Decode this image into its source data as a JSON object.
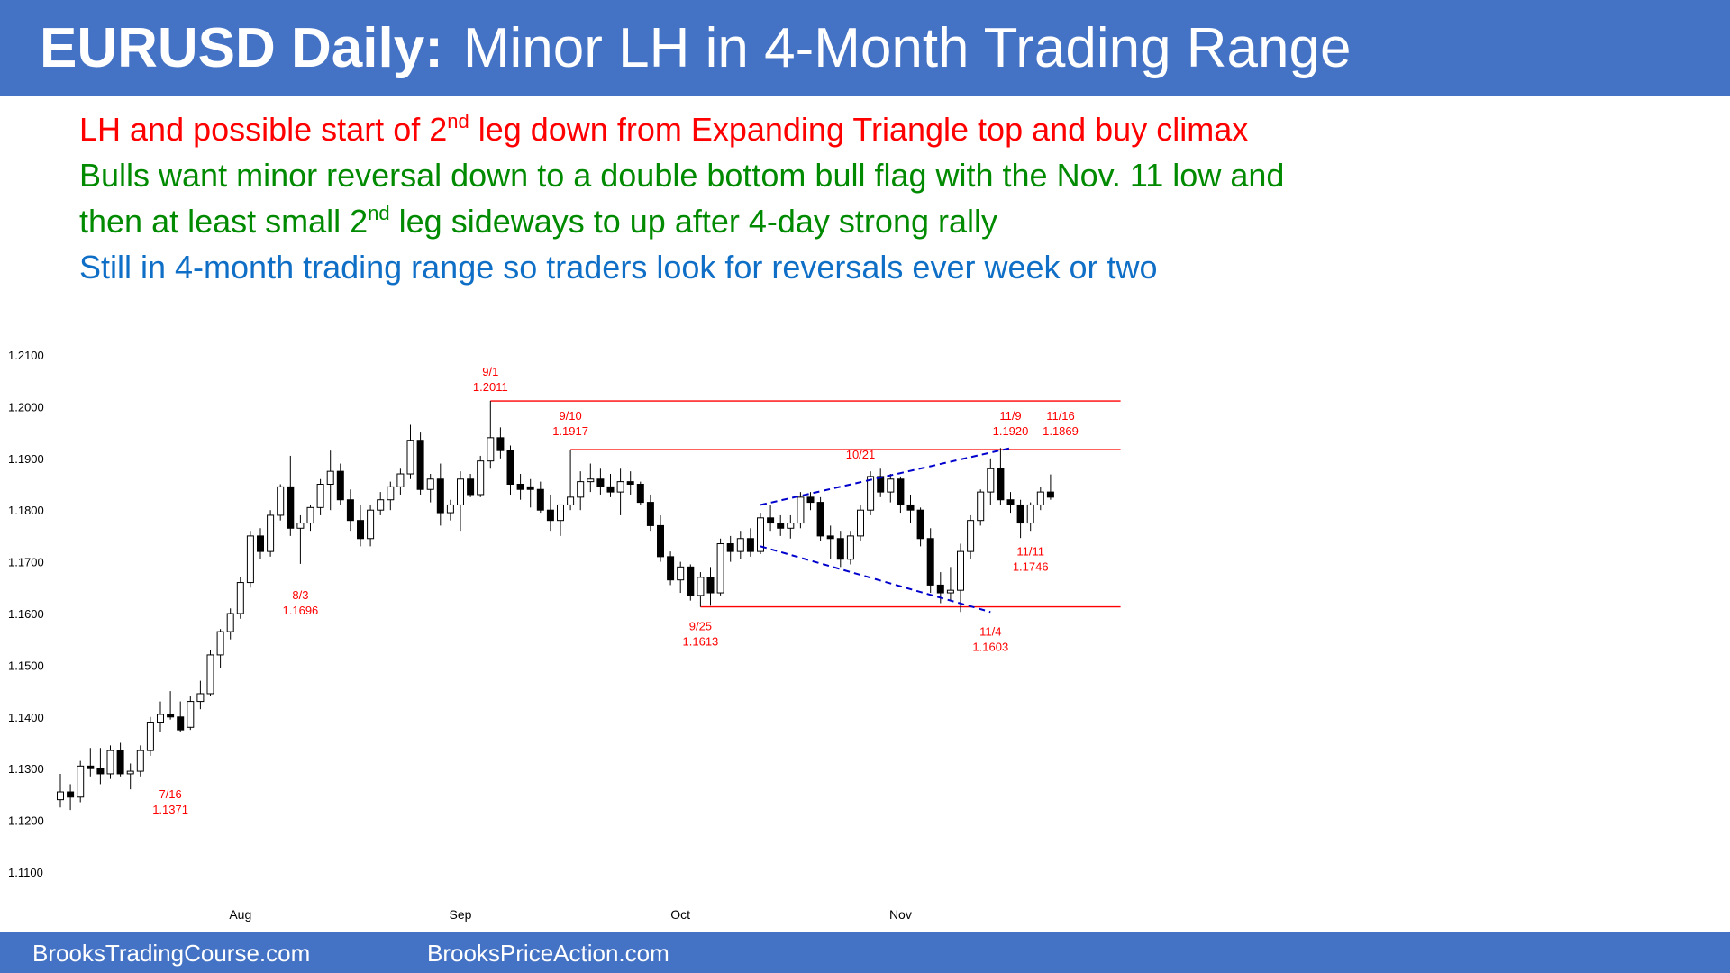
{
  "header": {
    "title_bold": "EURUSD Daily:",
    "title_rest": "Minor LH in 4-Month Trading Range"
  },
  "notes": {
    "line1": {
      "pre": "LH and possible start of 2",
      "sup": "nd",
      "post": " leg down from Expanding Triangle top and buy climax"
    },
    "line2": "Bulls want minor reversal down to a double bottom bull flag with the Nov. 11 low and",
    "line3": {
      "pre": "then at least small 2",
      "sup": "nd",
      "post": " leg sideways to up after 4-day strong rally"
    },
    "line4": "Still in 4-month trading range so traders look for reversals ever week or two"
  },
  "footer": {
    "left": "BrooksTradingCourse.com",
    "right": "BrooksPriceAction.com"
  },
  "colors": {
    "header_bg": "#4472c4",
    "red": "#ff0000",
    "green": "#008a00",
    "blue": "#0f6fc6",
    "triangle": "#0000cc"
  },
  "chart_data": {
    "type": "candlestick",
    "title": "",
    "ylim": [
      1.11,
      1.21
    ],
    "y_ticks": [
      "1.2100",
      "1.2000",
      "1.1900",
      "1.1800",
      "1.1700",
      "1.1600",
      "1.1500",
      "1.1400",
      "1.1300",
      "1.1200",
      "1.1100"
    ],
    "x_ticks": [
      {
        "label": "Aug",
        "bar": 18
      },
      {
        "label": "Sep",
        "bar": 40
      },
      {
        "label": "Oct",
        "bar": 62
      },
      {
        "label": "Nov",
        "bar": 84
      }
    ],
    "candles": [
      [
        1.124,
        1.129,
        1.1225,
        1.1255
      ],
      [
        1.1255,
        1.127,
        1.122,
        1.1245
      ],
      [
        1.1245,
        1.1315,
        1.1235,
        1.1305
      ],
      [
        1.1305,
        1.134,
        1.1285,
        1.13
      ],
      [
        1.13,
        1.134,
        1.127,
        1.129
      ],
      [
        1.129,
        1.1345,
        1.128,
        1.1335
      ],
      [
        1.1335,
        1.135,
        1.1285,
        1.129
      ],
      [
        1.129,
        1.131,
        1.126,
        1.1295
      ],
      [
        1.1295,
        1.1345,
        1.1285,
        1.1335
      ],
      [
        1.1335,
        1.14,
        1.1325,
        1.139
      ],
      [
        1.139,
        1.143,
        1.137,
        1.1405
      ],
      [
        1.1405,
        1.145,
        1.1395,
        1.14
      ],
      [
        1.14,
        1.143,
        1.137,
        1.1375
      ],
      [
        1.138,
        1.144,
        1.1375,
        1.143
      ],
      [
        1.143,
        1.147,
        1.1415,
        1.1445
      ],
      [
        1.1445,
        1.153,
        1.144,
        1.152
      ],
      [
        1.152,
        1.157,
        1.1495,
        1.1565
      ],
      [
        1.1565,
        1.161,
        1.155,
        1.16
      ],
      [
        1.16,
        1.167,
        1.159,
        1.166
      ],
      [
        1.166,
        1.176,
        1.165,
        1.175
      ],
      [
        1.175,
        1.1765,
        1.1705,
        1.172
      ],
      [
        1.172,
        1.18,
        1.171,
        1.179
      ],
      [
        1.179,
        1.185,
        1.178,
        1.1845
      ],
      [
        1.1845,
        1.1905,
        1.175,
        1.1765
      ],
      [
        1.1765,
        1.179,
        1.1696,
        1.1775
      ],
      [
        1.1775,
        1.181,
        1.176,
        1.1805
      ],
      [
        1.1805,
        1.186,
        1.179,
        1.185
      ],
      [
        1.185,
        1.1915,
        1.18,
        1.1875
      ],
      [
        1.1875,
        1.189,
        1.181,
        1.182
      ],
      [
        1.182,
        1.184,
        1.176,
        1.178
      ],
      [
        1.178,
        1.181,
        1.173,
        1.1745
      ],
      [
        1.1745,
        1.181,
        1.173,
        1.18
      ],
      [
        1.18,
        1.1835,
        1.179,
        1.182
      ],
      [
        1.182,
        1.1855,
        1.18,
        1.1845
      ],
      [
        1.1845,
        1.188,
        1.183,
        1.187
      ],
      [
        1.187,
        1.1965,
        1.186,
        1.1935
      ],
      [
        1.1935,
        1.195,
        1.183,
        1.184
      ],
      [
        1.184,
        1.187,
        1.1815,
        1.186
      ],
      [
        1.186,
        1.189,
        1.177,
        1.1795
      ],
      [
        1.1795,
        1.182,
        1.178,
        1.181
      ],
      [
        1.181,
        1.1875,
        1.176,
        1.186
      ],
      [
        1.186,
        1.187,
        1.1825,
        1.183
      ],
      [
        1.183,
        1.1905,
        1.1825,
        1.1895
      ],
      [
        1.1895,
        1.2011,
        1.188,
        1.194
      ],
      [
        1.194,
        1.196,
        1.19,
        1.1915
      ],
      [
        1.1915,
        1.1925,
        1.183,
        1.185
      ],
      [
        1.185,
        1.187,
        1.182,
        1.184
      ],
      [
        1.1845,
        1.186,
        1.1805,
        1.184
      ],
      [
        1.184,
        1.1855,
        1.1795,
        1.18
      ],
      [
        1.18,
        1.183,
        1.176,
        1.178
      ],
      [
        1.178,
        1.181,
        1.175,
        1.181
      ],
      [
        1.181,
        1.1917,
        1.18,
        1.1825
      ],
      [
        1.1825,
        1.1875,
        1.18,
        1.1855
      ],
      [
        1.1855,
        1.189,
        1.1835,
        1.186
      ],
      [
        1.186,
        1.188,
        1.183,
        1.1845
      ],
      [
        1.1845,
        1.187,
        1.1825,
        1.1835
      ],
      [
        1.1835,
        1.188,
        1.179,
        1.1855
      ],
      [
        1.1855,
        1.1875,
        1.183,
        1.185
      ],
      [
        1.185,
        1.1855,
        1.181,
        1.1815
      ],
      [
        1.1815,
        1.183,
        1.176,
        1.177
      ],
      [
        1.177,
        1.179,
        1.17,
        1.171
      ],
      [
        1.171,
        1.172,
        1.1655,
        1.1665
      ],
      [
        1.1665,
        1.17,
        1.164,
        1.169
      ],
      [
        1.169,
        1.1695,
        1.1625,
        1.1635
      ],
      [
        1.1635,
        1.168,
        1.1613,
        1.167
      ],
      [
        1.167,
        1.169,
        1.1615,
        1.164
      ],
      [
        1.164,
        1.1745,
        1.1635,
        1.1735
      ],
      [
        1.1735,
        1.175,
        1.17,
        1.172
      ],
      [
        1.172,
        1.176,
        1.1705,
        1.1745
      ],
      [
        1.1745,
        1.1765,
        1.171,
        1.172
      ],
      [
        1.172,
        1.1795,
        1.1715,
        1.1785
      ],
      [
        1.1785,
        1.181,
        1.176,
        1.1775
      ],
      [
        1.1775,
        1.179,
        1.175,
        1.1765
      ],
      [
        1.1765,
        1.179,
        1.1745,
        1.1775
      ],
      [
        1.1775,
        1.1835,
        1.1765,
        1.1825
      ],
      [
        1.1825,
        1.1835,
        1.18,
        1.1815
      ],
      [
        1.1815,
        1.1825,
        1.174,
        1.175
      ],
      [
        1.175,
        1.177,
        1.1705,
        1.1745
      ],
      [
        1.1745,
        1.176,
        1.169,
        1.1705
      ],
      [
        1.1705,
        1.176,
        1.1695,
        1.175
      ],
      [
        1.175,
        1.181,
        1.174,
        1.18
      ],
      [
        1.18,
        1.1875,
        1.179,
        1.1865
      ],
      [
        1.1865,
        1.188,
        1.1825,
        1.1835
      ],
      [
        1.1835,
        1.187,
        1.1815,
        1.186
      ],
      [
        1.186,
        1.1865,
        1.1795,
        1.181
      ],
      [
        1.181,
        1.183,
        1.1775,
        1.18
      ],
      [
        1.18,
        1.1805,
        1.173,
        1.1745
      ],
      [
        1.1745,
        1.1765,
        1.164,
        1.1655
      ],
      [
        1.1655,
        1.168,
        1.162,
        1.164
      ],
      [
        1.164,
        1.169,
        1.1625,
        1.1645
      ],
      [
        1.1645,
        1.1735,
        1.1603,
        1.172
      ],
      [
        1.172,
        1.179,
        1.1705,
        1.178
      ],
      [
        1.178,
        1.184,
        1.177,
        1.1835
      ],
      [
        1.1835,
        1.19,
        1.181,
        1.188
      ],
      [
        1.188,
        1.192,
        1.181,
        1.182
      ],
      [
        1.182,
        1.1835,
        1.1795,
        1.181
      ],
      [
        1.181,
        1.182,
        1.1746,
        1.1775
      ],
      [
        1.1775,
        1.1815,
        1.176,
        1.181
      ],
      [
        1.181,
        1.1845,
        1.18,
        1.1835
      ],
      [
        1.1835,
        1.1869,
        1.182,
        1.1825
      ]
    ],
    "reference_lines": [
      {
        "name": "sep1-high-line",
        "y": 1.2011,
        "from_bar": 43,
        "to_bar": 106
      },
      {
        "name": "sep10-high-line",
        "y": 1.1917,
        "from_bar": 51,
        "to_bar": 106
      },
      {
        "name": "sep25-low-line",
        "y": 1.1613,
        "from_bar": 64,
        "to_bar": 106
      }
    ],
    "triangle_lines": [
      {
        "name": "triangle-upper-line",
        "from": [
          70,
          1.181
        ],
        "to": [
          95,
          1.192
        ]
      },
      {
        "name": "triangle-lower-line",
        "from": [
          70,
          1.173
        ],
        "to": [
          93,
          1.1603
        ]
      }
    ],
    "annotations": [
      {
        "name": "label-7-16",
        "date": "7/16",
        "price": "1.1371",
        "bar": 11,
        "anchor": "below",
        "y": 1.126
      },
      {
        "name": "label-8-3",
        "date": "8/3",
        "price": "1.1696",
        "bar": 24,
        "anchor": "below",
        "y": 1.1645
      },
      {
        "name": "label-9-1",
        "date": "9/1",
        "price": "1.2011",
        "bar": 43,
        "anchor": "above",
        "y": 1.203
      },
      {
        "name": "label-9-10",
        "date": "9/10",
        "price": "1.1917",
        "bar": 51,
        "anchor": "above",
        "y": 1.1945
      },
      {
        "name": "label-9-25",
        "date": "9/25",
        "price": "1.1613",
        "bar": 64,
        "anchor": "below",
        "y": 1.1585
      },
      {
        "name": "label-10-21",
        "date": "10/21",
        "price": "",
        "bar": 80,
        "anchor": "above",
        "y": 1.19
      },
      {
        "name": "label-11-4",
        "date": "11/4",
        "price": "1.1603",
        "bar": 93,
        "anchor": "below",
        "y": 1.1575
      },
      {
        "name": "label-11-9",
        "date": "11/9",
        "price": "1.1920",
        "bar": 95,
        "anchor": "above",
        "y": 1.1945
      },
      {
        "name": "label-11-11",
        "date": "11/11",
        "price": "1.1746",
        "bar": 97,
        "anchor": "below",
        "y": 1.173
      },
      {
        "name": "label-11-16",
        "date": "11/16",
        "price": "1.1869",
        "bar": 100,
        "anchor": "above",
        "y": 1.1945
      }
    ]
  }
}
